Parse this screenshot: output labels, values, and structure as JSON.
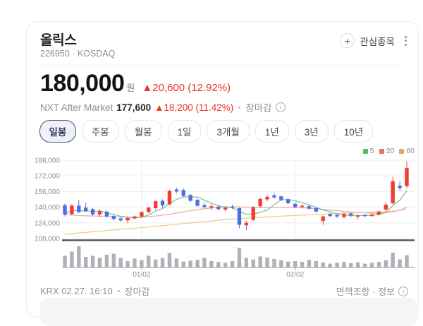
{
  "header": {
    "title": "올릭스",
    "code_market": "226950 · KOSDAQ",
    "watchlist_label": "관심종목",
    "plus_glyph": "+"
  },
  "price": {
    "value": "180,000",
    "currency": "원",
    "change": "▲20,600 (12.92%)"
  },
  "nxt": {
    "label": "NXT After Market",
    "value": "177,600",
    "change": "▲18,200 (11.42%)",
    "status": "장마감"
  },
  "tabs": [
    {
      "label": "일봉",
      "selected": true
    },
    {
      "label": "주봉",
      "selected": false
    },
    {
      "label": "월봉",
      "selected": false
    },
    {
      "label": "1일",
      "selected": false
    },
    {
      "label": "3개월",
      "selected": false
    },
    {
      "label": "1년",
      "selected": false
    },
    {
      "label": "3년",
      "selected": false
    },
    {
      "label": "10년",
      "selected": false
    }
  ],
  "footer": {
    "left": "KRX 02.27. 16:10",
    "left_status": "장마감",
    "right": "면책조항 · 정보"
  },
  "chart_data": {
    "type": "candlestick",
    "title": "올릭스 일봉 차트",
    "ylim": [
      108000,
      188000
    ],
    "y_ticks": [
      188000,
      172000,
      156000,
      140000,
      124000,
      108000
    ],
    "x_gridlines": [
      {
        "index": 11,
        "label": "01/02"
      },
      {
        "index": 33,
        "label": "02/02"
      }
    ],
    "ma_legend": [
      {
        "label": "5",
        "color": "#57b868"
      },
      {
        "label": "20",
        "color": "#e4736f"
      },
      {
        "label": "60",
        "color": "#e2aa5a"
      }
    ],
    "colors": {
      "up": "#f13d33",
      "down": "#4d6fe3",
      "volume": "#aeb1b7",
      "grid": "#ededf1",
      "vgrid": "#e8e9ed",
      "axis_text": "#8b8f96",
      "separator": "#55565a",
      "vol_axis": "#9a9da3",
      "ma5": "#7cc497",
      "ma20": "#f0aba7",
      "ma60": "#f1cb96"
    },
    "candles_ohlc": [
      [
        142000,
        143500,
        130500,
        132500
      ],
      [
        133000,
        143000,
        131500,
        141500
      ],
      [
        141500,
        147500,
        134000,
        135000
      ],
      [
        139500,
        144500,
        135000,
        136000
      ],
      [
        138000,
        139000,
        131500,
        132500
      ],
      [
        132500,
        138000,
        130000,
        136000
      ],
      [
        135500,
        136500,
        129500,
        130500
      ],
      [
        131000,
        132500,
        126500,
        128000
      ],
      [
        128500,
        129500,
        125000,
        126500
      ],
      [
        126500,
        130000,
        123500,
        129000
      ],
      [
        128500,
        131500,
        127500,
        130500
      ],
      [
        130500,
        136000,
        129500,
        135000
      ],
      [
        135000,
        140500,
        134000,
        139500
      ],
      [
        139000,
        147000,
        137500,
        146000
      ],
      [
        146500,
        148000,
        139500,
        142000
      ],
      [
        143000,
        158000,
        142000,
        156500
      ],
      [
        158000,
        160000,
        154500,
        156000
      ],
      [
        157500,
        159000,
        150500,
        151500
      ],
      [
        152500,
        153500,
        145500,
        146500
      ],
      [
        147500,
        148500,
        140500,
        141500
      ],
      [
        142000,
        144500,
        139000,
        140000
      ],
      [
        139500,
        143500,
        137000,
        141000
      ],
      [
        140500,
        142000,
        136500,
        138000
      ],
      [
        137500,
        141000,
        135500,
        139500
      ],
      [
        140500,
        142500,
        138000,
        139500
      ],
      [
        139000,
        139500,
        118500,
        122000
      ],
      [
        121500,
        126000,
        116500,
        124000
      ],
      [
        127000,
        141000,
        126000,
        140000
      ],
      [
        141000,
        149500,
        139500,
        148500
      ],
      [
        148000,
        152500,
        146000,
        150500
      ],
      [
        152000,
        154500,
        148500,
        150000
      ],
      [
        151000,
        152000,
        146500,
        147500
      ],
      [
        148000,
        149000,
        143000,
        144000
      ],
      [
        143500,
        144500,
        139000,
        140000
      ],
      [
        140500,
        143000,
        138500,
        141500
      ],
      [
        141000,
        142000,
        137500,
        138500
      ],
      [
        139000,
        140000,
        134500,
        135500
      ],
      [
        126000,
        131500,
        122000,
        130500
      ],
      [
        133000,
        134000,
        129500,
        131000
      ],
      [
        132000,
        133500,
        129000,
        130500
      ],
      [
        130000,
        134500,
        128500,
        133000
      ],
      [
        133500,
        134500,
        130000,
        131500
      ],
      [
        130500,
        132500,
        127500,
        131500
      ],
      [
        132000,
        133000,
        129500,
        131000
      ],
      [
        131000,
        133500,
        130000,
        132500
      ],
      [
        132500,
        136500,
        131500,
        135500
      ],
      [
        137500,
        145000,
        136500,
        142500
      ],
      [
        144000,
        171000,
        143000,
        166500
      ],
      [
        162000,
        166000,
        156500,
        159500
      ],
      [
        161500,
        187000,
        159500,
        180000
      ]
    ],
    "volumes": [
      55,
      75,
      100,
      50,
      55,
      45,
      60,
      65,
      45,
      30,
      42,
      35,
      55,
      38,
      45,
      68,
      42,
      28,
      32,
      36,
      45,
      30,
      26,
      22,
      30,
      92,
      45,
      38,
      52,
      46,
      40,
      34,
      28,
      30,
      26,
      36,
      30,
      24,
      18,
      22,
      26,
      20,
      24,
      18,
      22,
      26,
      34,
      70,
      38,
      58
    ],
    "ma20": [
      132500,
      132000,
      131500,
      131200,
      131000,
      130800,
      130500,
      130200,
      130000,
      129800,
      129800,
      130000,
      130400,
      131000,
      131800,
      132800,
      134000,
      135200,
      136400,
      137500,
      138400,
      139200,
      139800,
      140200,
      140400,
      140300,
      140000,
      139700,
      139500,
      139500,
      139600,
      139800,
      139900,
      139800,
      139500,
      139000,
      138400,
      137700,
      137000,
      136300,
      135700,
      135100,
      134600,
      134200,
      134000,
      134000,
      134300,
      135200,
      137000,
      140000
    ],
    "ma60": [
      112500,
      113100,
      113700,
      114300,
      114900,
      115500,
      116100,
      116700,
      117300,
      117900,
      118500,
      119100,
      119700,
      120400,
      121100,
      121800,
      122500,
      123200,
      123900,
      124600,
      125300,
      126000,
      126600,
      127200,
      127800,
      128300,
      128800,
      129200,
      129600,
      130000,
      130400,
      130800,
      131200,
      131600,
      131900,
      132200,
      132500,
      132800,
      133100,
      133400,
      133700,
      134000,
      134300,
      134600,
      134900,
      135200,
      135600,
      136100,
      136800,
      137800
    ]
  }
}
